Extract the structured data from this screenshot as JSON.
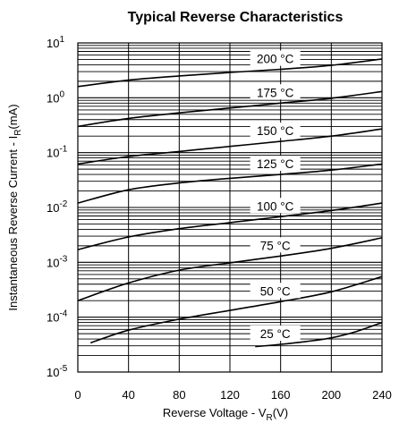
{
  "chart_data": {
    "type": "line",
    "title": "Typical Reverse Characteristics",
    "xlabel": "Reverse Voltage - V",
    "xlabel_sub": "R",
    "xlabel_unit": "(V)",
    "ylabel": "Instantaneous Reverse Current - I",
    "ylabel_sub": "R",
    "ylabel_unit": "(mA)",
    "xlim": [
      0,
      240
    ],
    "ylim": [
      1e-05,
      10
    ],
    "yscale": "log",
    "grid": true,
    "xticks": [
      0,
      40,
      80,
      120,
      160,
      200,
      240
    ],
    "yticks": [
      {
        "base": "10",
        "exp": "1",
        "value": 10
      },
      {
        "base": "10",
        "exp": "0",
        "value": 1
      },
      {
        "base": "10",
        "exp": "-1",
        "value": 0.1
      },
      {
        "base": "10",
        "exp": "-2",
        "value": 0.01
      },
      {
        "base": "10",
        "exp": "-3",
        "value": 0.001
      },
      {
        "base": "10",
        "exp": "-4",
        "value": 0.0001
      },
      {
        "base": "10",
        "exp": "-5",
        "value": 1e-05
      }
    ],
    "series": [
      {
        "name": "200 °C",
        "x": [
          0,
          40,
          80,
          120,
          160,
          200,
          240
        ],
        "y": [
          1.6,
          2.1,
          2.5,
          2.9,
          3.3,
          3.9,
          5.1
        ]
      },
      {
        "name": "175 °C",
        "x": [
          0,
          40,
          80,
          120,
          160,
          200,
          240
        ],
        "y": [
          0.3,
          0.42,
          0.53,
          0.65,
          0.8,
          0.98,
          1.3
        ]
      },
      {
        "name": "150 °C",
        "x": [
          0,
          40,
          80,
          120,
          160,
          200,
          240
        ],
        "y": [
          0.062,
          0.085,
          0.105,
          0.13,
          0.16,
          0.2,
          0.27
        ]
      },
      {
        "name": "125 °C",
        "x": [
          0,
          40,
          80,
          120,
          160,
          200,
          240
        ],
        "y": [
          0.012,
          0.021,
          0.028,
          0.034,
          0.04,
          0.048,
          0.062
        ]
      },
      {
        "name": "100 °C",
        "x": [
          0,
          40,
          80,
          120,
          160,
          200,
          240
        ],
        "y": [
          0.0017,
          0.0029,
          0.0041,
          0.0053,
          0.0068,
          0.0088,
          0.012
        ]
      },
      {
        "name": "75 °C",
        "x": [
          0,
          40,
          80,
          120,
          160,
          200,
          240
        ],
        "y": [
          0.0002,
          0.00042,
          0.00072,
          0.00098,
          0.0013,
          0.0018,
          0.0028
        ]
      },
      {
        "name": "50 °C",
        "x": [
          10,
          40,
          80,
          120,
          160,
          200,
          240
        ],
        "y": [
          3.4e-05,
          5.8e-05,
          9.2e-05,
          0.000133,
          0.000192,
          0.00029,
          0.00055
        ]
      },
      {
        "name": "25 °C",
        "x": [
          140,
          160,
          180,
          200,
          220,
          240
        ],
        "y": [
          2.9e-05,
          3.2e-05,
          3.6e-05,
          4.2e-05,
          5.5e-05,
          8e-05
        ]
      }
    ]
  }
}
